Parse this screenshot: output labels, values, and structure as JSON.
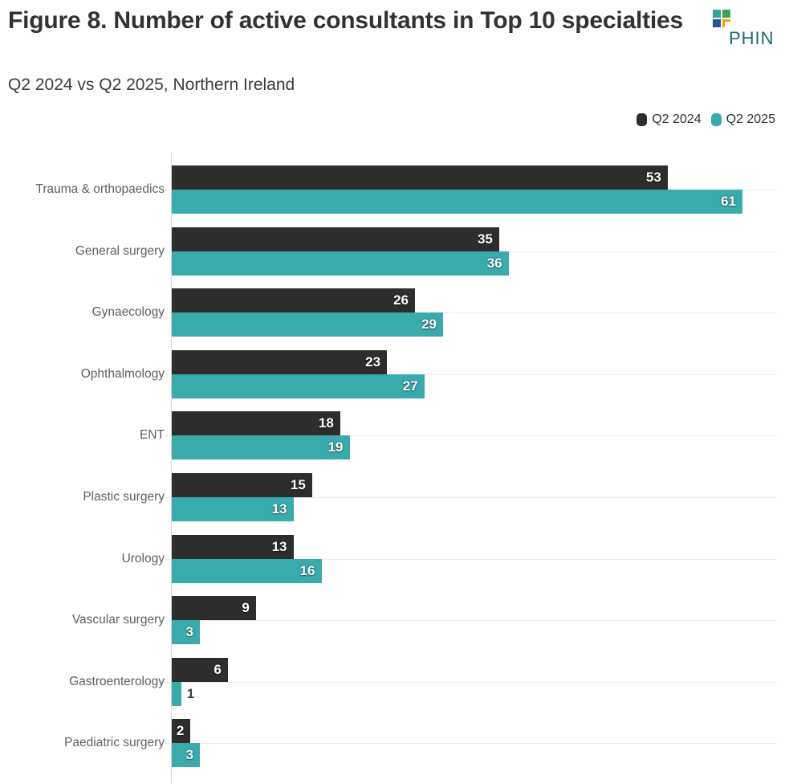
{
  "header": {
    "title": "Figure 8. Number of active consultants in Top 10 specialties",
    "subtitle": "Q2 2024 vs Q2 2025, Northern Ireland",
    "logo_text": "PHIN"
  },
  "legend": {
    "items": [
      {
        "label": "Q2 2024",
        "color": "#2d2d2d"
      },
      {
        "label": "Q2 2025",
        "color": "#39abad"
      }
    ]
  },
  "colors": {
    "q2_2024": "#2d2d2d",
    "q2_2025": "#39abad",
    "gridline": "#ececec",
    "axis": "#d8d8d8",
    "logo_teal": "#31a2a0",
    "logo_green": "#3ca44a",
    "logo_navy": "#24558e",
    "logo_orange": "#f5a200"
  },
  "chart_data": {
    "type": "bar",
    "orientation": "horizontal",
    "title": "Figure 8. Number of active consultants in Top 10 specialties",
    "subtitle": "Q2 2024 vs Q2 2025, Northern Ireland",
    "legend_position": "top-right",
    "grid": "per-category horizontal gridlines",
    "xlim": [
      0,
      65
    ],
    "categories": [
      "Trauma & orthopaedics",
      "General surgery",
      "Gynaecology",
      "Ophthalmology",
      "ENT",
      "Plastic surgery",
      "Urology",
      "Vascular surgery",
      "Gastroenterology",
      "Paediatric surgery"
    ],
    "series": [
      {
        "name": "Q2 2024",
        "color": "#2d2d2d",
        "values": [
          53,
          35,
          26,
          23,
          18,
          15,
          13,
          9,
          6,
          2
        ]
      },
      {
        "name": "Q2 2025",
        "color": "#39abad",
        "values": [
          61,
          36,
          29,
          27,
          19,
          13,
          16,
          3,
          1,
          3
        ]
      }
    ]
  }
}
